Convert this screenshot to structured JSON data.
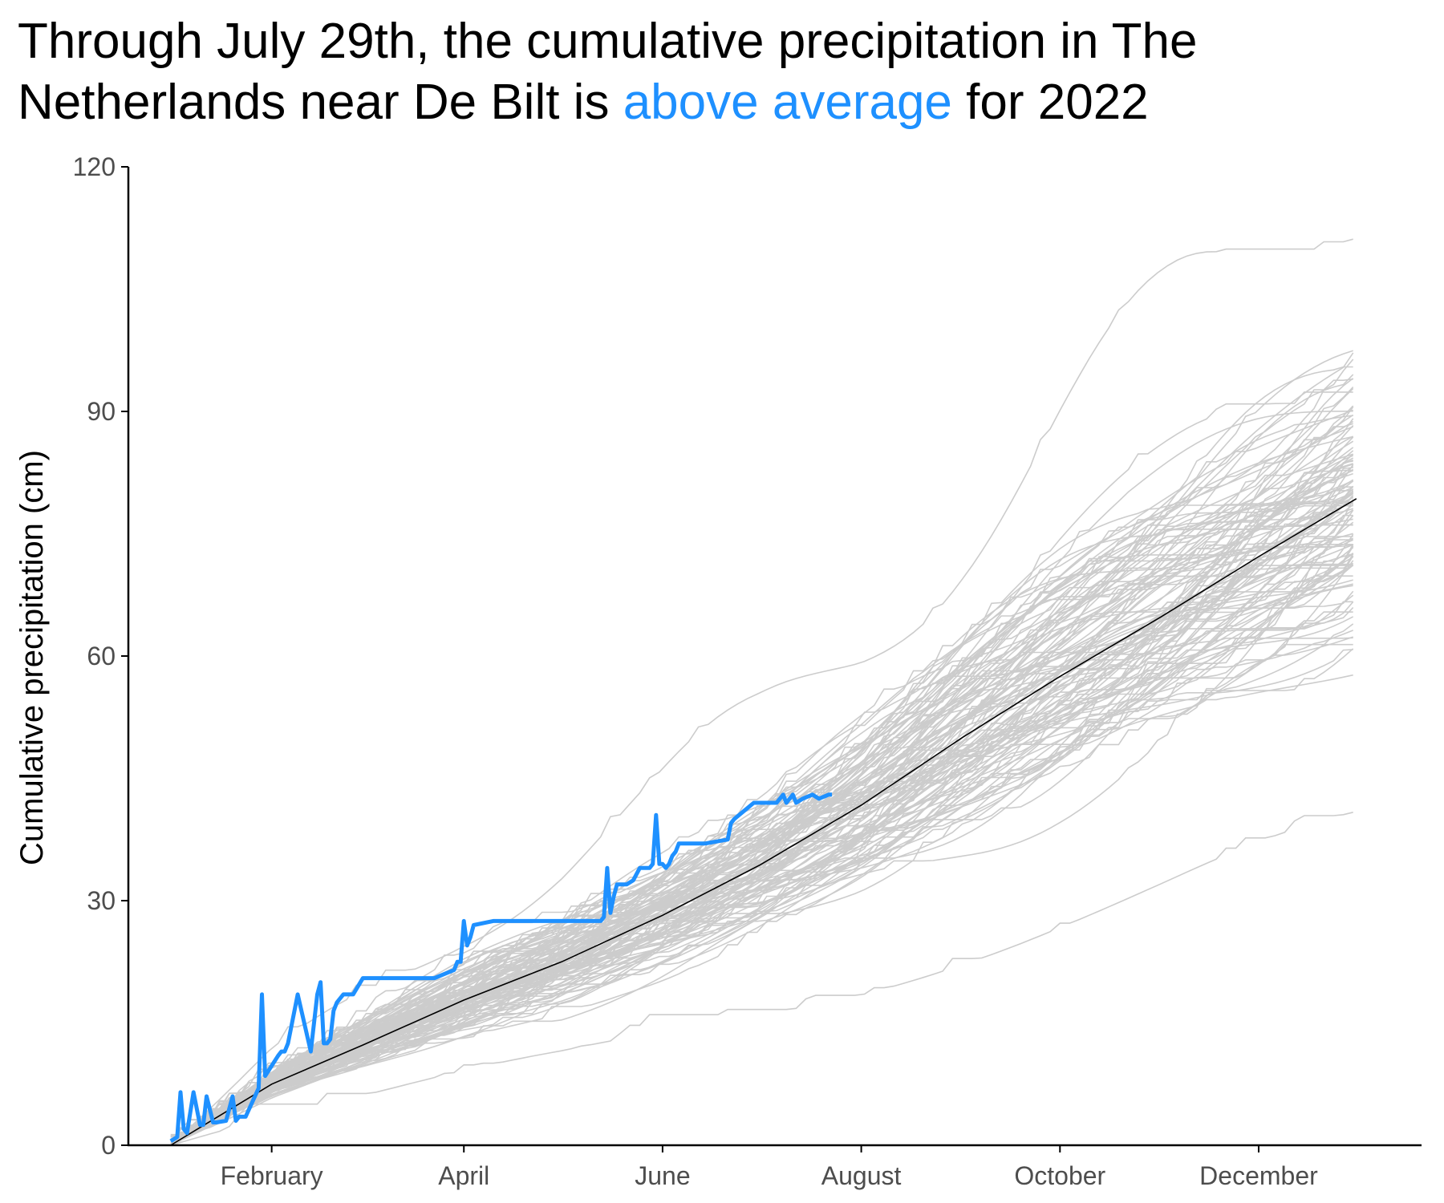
{
  "title": {
    "part1": "Through July 29th, the cumulative precipitation in The Netherlands near De Bilt is",
    "highlight": "above average",
    "part2": "for 2022"
  },
  "colors": {
    "current_year": "#1E90FF",
    "average": "#000000",
    "historical": "#cccccc",
    "axis": "#000000"
  },
  "chart_data": {
    "type": "line",
    "title": "Through July 29th, the cumulative precipitation in The Netherlands near De Bilt is above average for 2022",
    "xlabel": "",
    "ylabel": "Cumulative precipitation (cm)",
    "x_unit": "day of year",
    "xlim": [
      -12,
      385
    ],
    "ylim": [
      0,
      120
    ],
    "x_ticks": [
      {
        "label": "February",
        "value": 32
      },
      {
        "label": "April",
        "value": 91
      },
      {
        "label": "June",
        "value": 152
      },
      {
        "label": "August",
        "value": 213
      },
      {
        "label": "October",
        "value": 274
      },
      {
        "label": "December",
        "value": 335
      }
    ],
    "y_ticks": [
      0,
      30,
      60,
      90,
      120
    ],
    "grid": false,
    "historical_years": {
      "description": "historical years, one thin grey line each",
      "count": 120,
      "final_value_range": [
        38,
        120
      ]
    },
    "series": [
      {
        "name": "average",
        "x": [
          1,
          32,
          60,
          91,
          121,
          152,
          182,
          213,
          244,
          274,
          305,
          335,
          365
        ],
        "values": [
          0,
          7.5,
          12.3,
          17.8,
          22.5,
          28.2,
          34.4,
          41.7,
          50.0,
          57.5,
          64.8,
          72.2,
          79.3
        ]
      },
      {
        "name": "2022",
        "x": [
          1,
          3,
          4,
          5,
          6,
          8,
          10,
          11,
          12,
          14,
          15,
          18,
          20,
          21,
          22,
          24,
          28,
          29,
          30,
          34,
          35,
          36,
          37,
          40,
          44,
          46,
          47,
          48,
          49,
          50,
          51,
          52,
          53,
          54,
          55,
          57,
          60,
          62,
          67,
          73,
          74,
          82,
          88,
          89,
          90,
          91,
          92,
          93,
          94,
          100,
          110,
          120,
          130,
          133,
          134,
          135,
          136,
          137,
          138,
          141,
          143,
          145,
          147,
          148,
          149,
          150,
          151,
          152,
          153,
          154,
          155,
          156,
          157,
          158,
          160,
          165,
          172,
          173,
          174,
          177,
          180,
          185,
          187,
          188,
          189,
          190,
          191,
          192,
          193,
          195,
          198,
          200,
          203,
          204
        ],
        "values": [
          0.5,
          1.0,
          6.5,
          2.0,
          1.5,
          6.5,
          2.5,
          2.5,
          6.0,
          2.8,
          2.8,
          3.0,
          6.0,
          3.0,
          3.5,
          3.5,
          7.0,
          18.5,
          8.5,
          11.0,
          11.5,
          11.5,
          12.5,
          18.5,
          11.5,
          18.5,
          20.0,
          12.5,
          12.5,
          13.0,
          16.5,
          17.5,
          18.0,
          18.5,
          18.5,
          18.5,
          20.5,
          20.5,
          20.5,
          20.5,
          20.5,
          20.5,
          21.5,
          22.5,
          22.5,
          27.5,
          24.5,
          25.5,
          27.0,
          27.5,
          27.5,
          27.5,
          27.5,
          27.5,
          28.0,
          34.0,
          28.5,
          30.5,
          32.0,
          32.0,
          32.5,
          34.0,
          34.0,
          34.0,
          34.5,
          40.5,
          34.5,
          34.5,
          34.0,
          34.5,
          35.5,
          36.0,
          37.0,
          37.0,
          37.0,
          37.0,
          37.5,
          39.5,
          40.0,
          41.0,
          42.0,
          42.0,
          42.0,
          42.5,
          43.0,
          42.0,
          42.5,
          43.0,
          42.0,
          42.5,
          43.0,
          42.5,
          43.0,
          43.0
        ]
      }
    ]
  }
}
